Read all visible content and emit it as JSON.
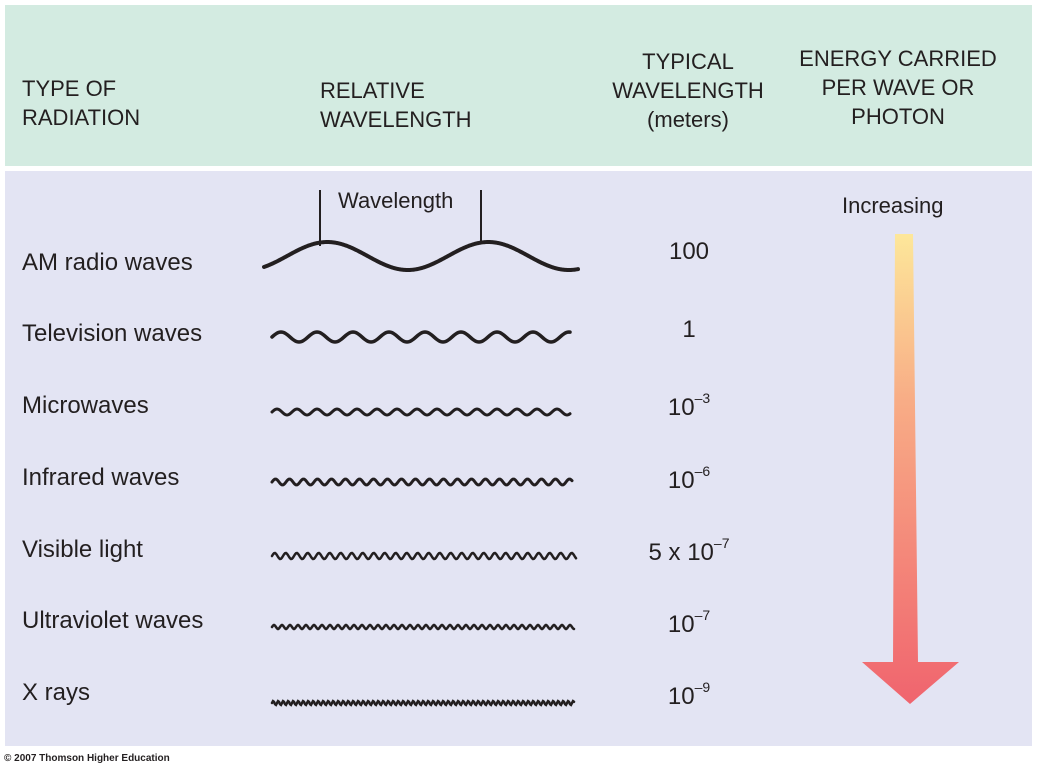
{
  "headers": {
    "type": [
      "TYPE OF",
      "RADIATION"
    ],
    "relative": [
      "RELATIVE",
      "WAVELENGTH"
    ],
    "typical": [
      "TYPICAL",
      "WAVELENGTH",
      "(meters)"
    ],
    "energy": [
      "ENERGY CARRIED",
      "PER WAVE OR",
      "PHOTON"
    ]
  },
  "wavelength_label": "Wavelength",
  "energy_label": "Increasing",
  "rows": [
    {
      "name": "AM radio waves",
      "wl_base": "100",
      "wl_exp": ""
    },
    {
      "name": "Television waves",
      "wl_base": "1",
      "wl_exp": ""
    },
    {
      "name": "Microwaves",
      "wl_base": "10",
      "wl_exp": "–3"
    },
    {
      "name": "Infrared waves",
      "wl_base": "10",
      "wl_exp": "–6"
    },
    {
      "name": "Visible light",
      "wl_base": "5 x 10",
      "wl_exp": "–7"
    },
    {
      "name": "Ultraviolet waves",
      "wl_base": "10",
      "wl_exp": "–7"
    },
    {
      "name": "X rays",
      "wl_base": "10",
      "wl_exp": "–9"
    }
  ],
  "copyright": "© 2007 Thomson Higher Education",
  "colors": {
    "header_bg": "#d3ebe1",
    "panel_bg": "#e3e4f3",
    "arrow_top": "#fde79a",
    "arrow_bottom": "#f0646e"
  }
}
